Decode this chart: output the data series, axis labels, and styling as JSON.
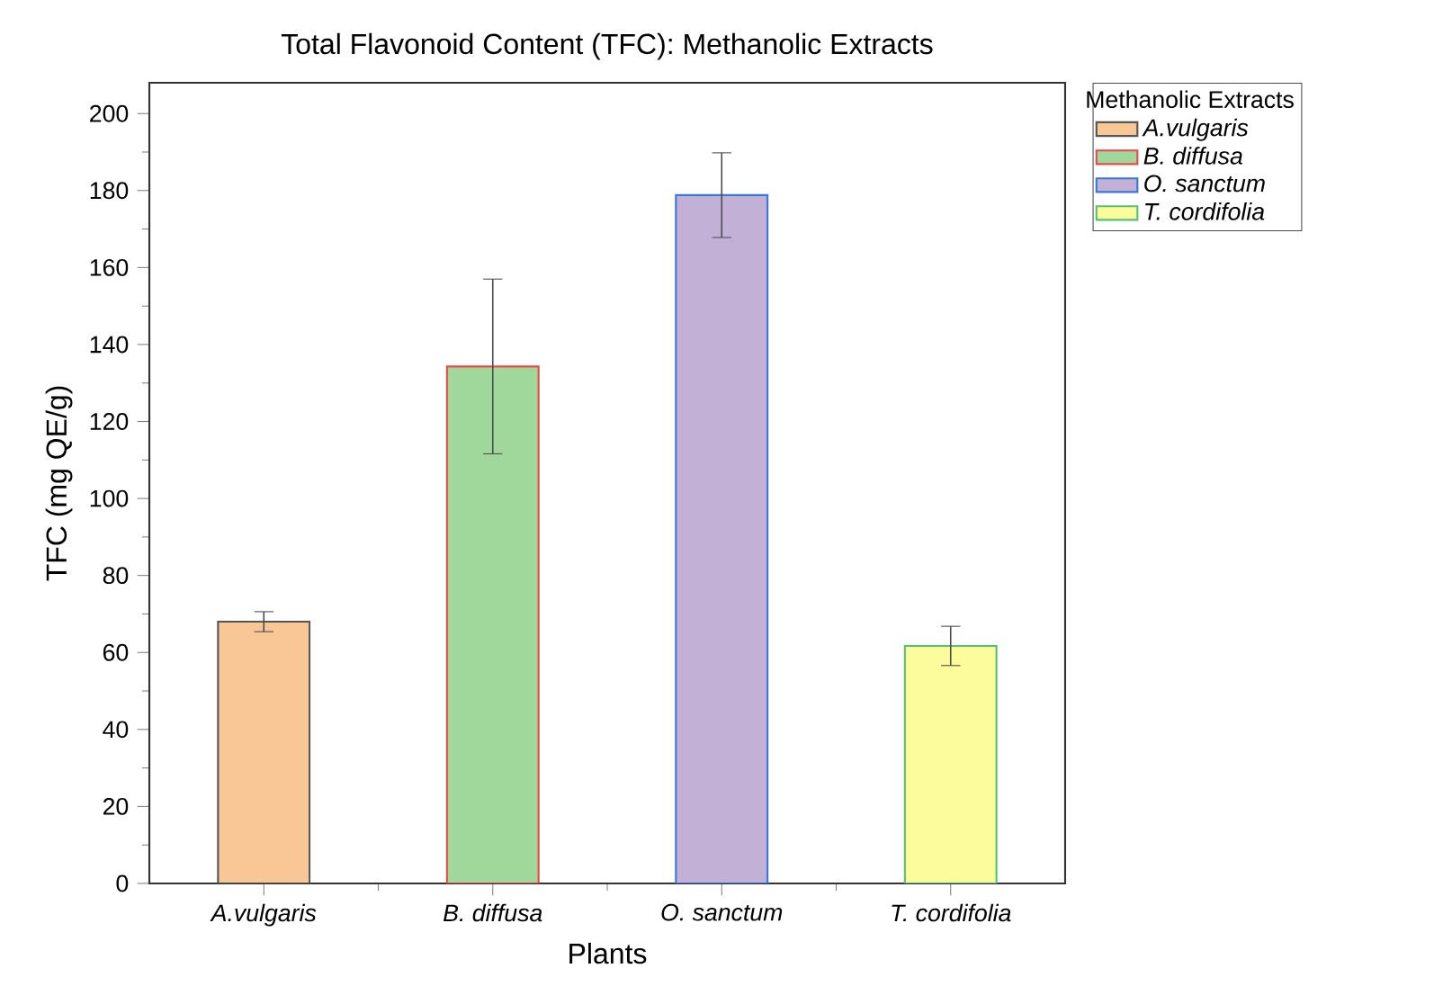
{
  "chart_data": {
    "type": "bar",
    "title": "Total Flavonoid Content (TFC): Methanolic Extracts",
    "xlabel": "Plants",
    "ylabel": "TFC (mg QE/g)",
    "legend_title": "Methanolic Extracts",
    "categories": [
      "A.vulgaris",
      "B. diffusa",
      "O. sanctum",
      "T. cordifolia"
    ],
    "series": [
      {
        "name": "A.vulgaris",
        "color": "#f9c696",
        "values": [
          68.0,
          null,
          null,
          null
        ],
        "errors": [
          2.6,
          null,
          null,
          null
        ]
      },
      {
        "name": "B. diffusa",
        "color": "#a0d89c",
        "values": [
          null,
          134.3,
          null,
          null
        ],
        "errors": [
          null,
          22.7,
          null,
          null
        ]
      },
      {
        "name": "O. sanctum",
        "color": "#c2b0d6",
        "values": [
          null,
          null,
          178.8,
          null
        ],
        "errors": [
          null,
          null,
          11.0,
          null
        ]
      },
      {
        "name": "T. cordifolia",
        "color": "#fdfc9c",
        "values": [
          null,
          null,
          null,
          61.7
        ],
        "errors": [
          null,
          null,
          null,
          5.1
        ]
      }
    ],
    "ylim": [
      0,
      208
    ],
    "yticks": [
      0,
      20,
      40,
      60,
      80,
      100,
      120,
      140,
      160,
      180,
      200
    ],
    "grid": false,
    "legend": "top right"
  }
}
